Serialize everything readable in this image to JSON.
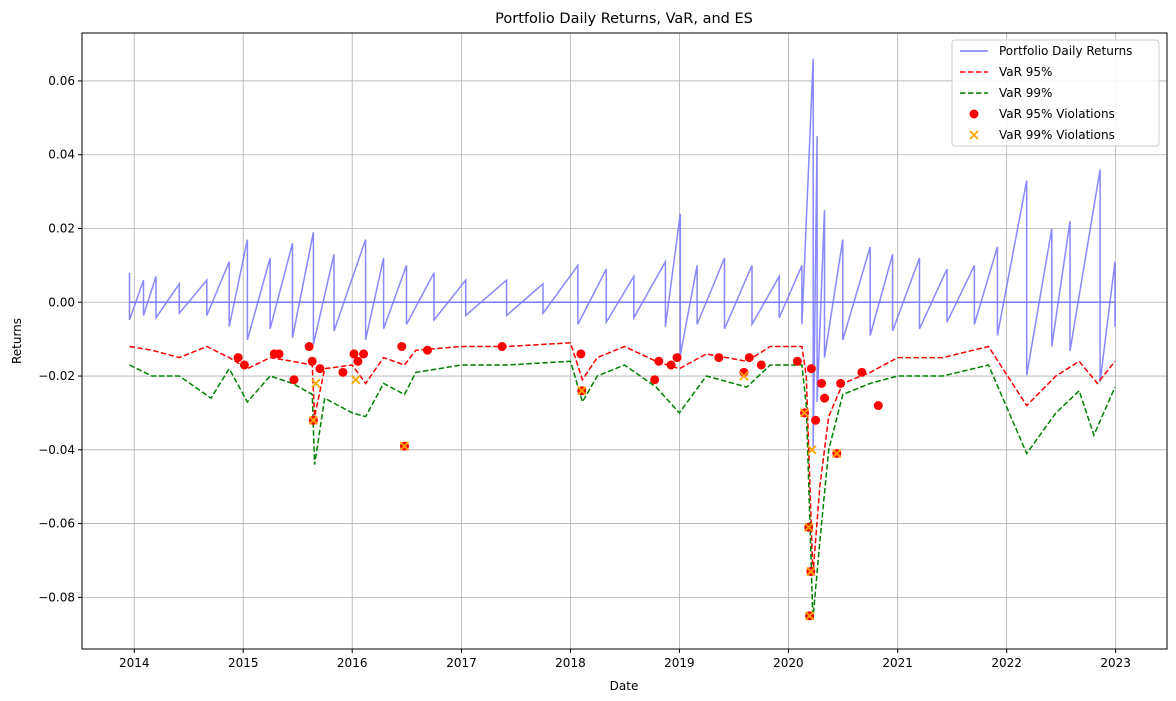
{
  "chart_data": {
    "type": "line",
    "title": "Portfolio Daily Returns, VaR, and ES",
    "xlabel": "Date",
    "ylabel": "Returns",
    "xlim": [
      "2013-07-10",
      "2023-06-22"
    ],
    "ylim": [
      -0.094,
      0.073
    ],
    "x_ticks": [
      "2014",
      "2015",
      "2016",
      "2017",
      "2018",
      "2019",
      "2020",
      "2021",
      "2022",
      "2023"
    ],
    "y_ticks": [
      -0.08,
      -0.06,
      -0.04,
      -0.02,
      0.0,
      0.02,
      0.04,
      0.06
    ],
    "y_tick_labels": [
      "−0.08",
      "−0.06",
      "−0.04",
      "−0.02",
      "0.00",
      "0.02",
      "0.04",
      "0.06"
    ],
    "grid": true,
    "legend_position": "top-right",
    "colors": {
      "returns": "#7b7bff",
      "var95": "#ff0000",
      "var99": "#008000",
      "viol95": "#ff0000",
      "viol99": "#ffa500"
    },
    "series": [
      {
        "name": "Portfolio Daily Returns",
        "style": "solid",
        "points": [
          [
            "2013-12-16",
            0.008
          ],
          [
            "2014-02-01",
            0.006
          ],
          [
            "2014-03-15",
            0.007
          ],
          [
            "2014-06-01",
            0.005
          ],
          [
            "2014-09-01",
            0.006
          ],
          [
            "2014-11-15",
            0.011
          ],
          [
            "2015-01-15",
            0.017
          ],
          [
            "2015-04-01",
            0.012
          ],
          [
            "2015-06-15",
            0.016
          ],
          [
            "2015-08-24",
            0.019
          ],
          [
            "2015-11-01",
            0.013
          ],
          [
            "2016-02-15",
            0.017
          ],
          [
            "2016-04-15",
            0.012
          ],
          [
            "2016-07-01",
            0.01
          ],
          [
            "2016-10-01",
            0.008
          ],
          [
            "2017-01-15",
            0.006
          ],
          [
            "2017-06-01",
            0.006
          ],
          [
            "2017-10-01",
            0.005
          ],
          [
            "2018-01-26",
            0.01
          ],
          [
            "2018-05-01",
            0.009
          ],
          [
            "2018-08-01",
            0.007
          ],
          [
            "2018-11-15",
            0.011
          ],
          [
            "2019-01-04",
            0.024
          ],
          [
            "2019-03-01",
            0.01
          ],
          [
            "2019-06-01",
            0.012
          ],
          [
            "2019-09-01",
            0.01
          ],
          [
            "2019-12-01",
            0.007
          ],
          [
            "2020-02-15",
            0.01
          ],
          [
            "2020-03-24",
            0.066
          ],
          [
            "2020-04-06",
            0.045
          ],
          [
            "2020-05-01",
            0.025
          ],
          [
            "2020-07-01",
            0.017
          ],
          [
            "2020-10-01",
            0.015
          ],
          [
            "2020-12-15",
            0.013
          ],
          [
            "2021-03-15",
            0.012
          ],
          [
            "2021-06-15",
            0.009
          ],
          [
            "2021-09-15",
            0.01
          ],
          [
            "2021-12-01",
            0.015
          ],
          [
            "2022-03-09",
            0.033
          ],
          [
            "2022-06-01",
            0.02
          ],
          [
            "2022-08-01",
            0.022
          ],
          [
            "2022-11-10",
            0.036
          ],
          [
            "2022-12-30",
            0.011
          ]
        ]
      },
      {
        "name": "VaR 95%",
        "style": "dashed",
        "points": [
          [
            "2013-12-16",
            -0.012
          ],
          [
            "2014-03-01",
            -0.013
          ],
          [
            "2014-06-01",
            -0.015
          ],
          [
            "2014-09-01",
            -0.012
          ],
          [
            "2014-11-15",
            -0.015
          ],
          [
            "2015-01-15",
            -0.018
          ],
          [
            "2015-04-01",
            -0.015
          ],
          [
            "2015-06-15",
            -0.016
          ],
          [
            "2015-08-20",
            -0.017
          ],
          [
            "2015-08-28",
            -0.031
          ],
          [
            "2015-10-01",
            -0.018
          ],
          [
            "2016-01-01",
            -0.017
          ],
          [
            "2016-02-15",
            -0.022
          ],
          [
            "2016-04-15",
            -0.015
          ],
          [
            "2016-06-24",
            -0.017
          ],
          [
            "2016-08-01",
            -0.013
          ],
          [
            "2017-01-01",
            -0.012
          ],
          [
            "2017-06-01",
            -0.012
          ],
          [
            "2018-01-01",
            -0.011
          ],
          [
            "2018-02-10",
            -0.021
          ],
          [
            "2018-04-01",
            -0.015
          ],
          [
            "2018-07-01",
            -0.012
          ],
          [
            "2018-10-15",
            -0.016
          ],
          [
            "2019-01-01",
            -0.018
          ],
          [
            "2019-04-01",
            -0.014
          ],
          [
            "2019-08-15",
            -0.016
          ],
          [
            "2019-11-01",
            -0.012
          ],
          [
            "2020-02-15",
            -0.012
          ],
          [
            "2020-03-01",
            -0.02
          ],
          [
            "2020-03-23",
            -0.074
          ],
          [
            "2020-04-15",
            -0.05
          ],
          [
            "2020-05-15",
            -0.031
          ],
          [
            "2020-07-01",
            -0.022
          ],
          [
            "2020-10-01",
            -0.019
          ],
          [
            "2021-01-01",
            -0.015
          ],
          [
            "2021-06-01",
            -0.015
          ],
          [
            "2021-11-01",
            -0.012
          ],
          [
            "2022-03-09",
            -0.028
          ],
          [
            "2022-06-15",
            -0.02
          ],
          [
            "2022-09-01",
            -0.016
          ],
          [
            "2022-11-01",
            -0.022
          ],
          [
            "2022-12-30",
            -0.016
          ]
        ]
      },
      {
        "name": "VaR 99%",
        "style": "dashed",
        "points": [
          [
            "2013-12-16",
            -0.017
          ],
          [
            "2014-03-01",
            -0.02
          ],
          [
            "2014-06-01",
            -0.02
          ],
          [
            "2014-09-15",
            -0.026
          ],
          [
            "2014-11-15",
            -0.018
          ],
          [
            "2015-01-15",
            -0.027
          ],
          [
            "2015-04-01",
            -0.02
          ],
          [
            "2015-06-15",
            -0.022
          ],
          [
            "2015-08-20",
            -0.025
          ],
          [
            "2015-08-28",
            -0.044
          ],
          [
            "2015-10-01",
            -0.026
          ],
          [
            "2016-01-01",
            -0.03
          ],
          [
            "2016-02-15",
            -0.031
          ],
          [
            "2016-04-15",
            -0.022
          ],
          [
            "2016-06-24",
            -0.025
          ],
          [
            "2016-08-01",
            -0.019
          ],
          [
            "2017-01-01",
            -0.017
          ],
          [
            "2017-06-01",
            -0.017
          ],
          [
            "2018-01-01",
            -0.016
          ],
          [
            "2018-02-10",
            -0.027
          ],
          [
            "2018-04-01",
            -0.02
          ],
          [
            "2018-07-01",
            -0.017
          ],
          [
            "2018-10-15",
            -0.023
          ],
          [
            "2019-01-01",
            -0.03
          ],
          [
            "2019-04-01",
            -0.02
          ],
          [
            "2019-08-15",
            -0.023
          ],
          [
            "2019-11-01",
            -0.017
          ],
          [
            "2020-02-15",
            -0.017
          ],
          [
            "2020-03-01",
            -0.028
          ],
          [
            "2020-03-23",
            -0.086
          ],
          [
            "2020-04-15",
            -0.065
          ],
          [
            "2020-05-15",
            -0.04
          ],
          [
            "2020-07-01",
            -0.025
          ],
          [
            "2020-10-01",
            -0.022
          ],
          [
            "2021-01-01",
            -0.02
          ],
          [
            "2021-06-01",
            -0.02
          ],
          [
            "2021-11-01",
            -0.017
          ],
          [
            "2022-03-09",
            -0.041
          ],
          [
            "2022-06-15",
            -0.03
          ],
          [
            "2022-09-01",
            -0.024
          ],
          [
            "2022-10-20",
            -0.036
          ],
          [
            "2022-12-30",
            -0.023
          ]
        ]
      },
      {
        "name": "VaR 95% Violations",
        "style": "marker-circle",
        "points": [
          [
            "2014-12-15",
            -0.015
          ],
          [
            "2015-01-05",
            -0.017
          ],
          [
            "2015-04-15",
            -0.014
          ],
          [
            "2015-05-01",
            -0.014
          ],
          [
            "2015-06-20",
            -0.021
          ],
          [
            "2015-08-10",
            -0.012
          ],
          [
            "2015-08-20",
            -0.016
          ],
          [
            "2015-08-24",
            -0.032
          ],
          [
            "2015-09-15",
            -0.018
          ],
          [
            "2015-12-01",
            -0.019
          ],
          [
            "2016-01-07",
            -0.014
          ],
          [
            "2016-01-20",
            -0.016
          ],
          [
            "2016-02-08",
            -0.014
          ],
          [
            "2016-06-15",
            -0.012
          ],
          [
            "2016-06-24",
            -0.039
          ],
          [
            "2016-09-09",
            -0.013
          ],
          [
            "2017-05-17",
            -0.012
          ],
          [
            "2018-02-05",
            -0.014
          ],
          [
            "2018-02-08",
            -0.024
          ],
          [
            "2018-10-10",
            -0.021
          ],
          [
            "2018-10-24",
            -0.016
          ],
          [
            "2018-12-04",
            -0.017
          ],
          [
            "2018-12-24",
            -0.015
          ],
          [
            "2019-05-13",
            -0.015
          ],
          [
            "2019-08-05",
            -0.019
          ],
          [
            "2019-08-23",
            -0.015
          ],
          [
            "2019-10-02",
            -0.017
          ],
          [
            "2020-01-31",
            -0.016
          ],
          [
            "2020-02-24",
            -0.03
          ],
          [
            "2020-03-09",
            -0.061
          ],
          [
            "2020-03-12",
            -0.085
          ],
          [
            "2020-03-16",
            -0.073
          ],
          [
            "2020-03-18",
            -0.018
          ],
          [
            "2020-04-01",
            -0.032
          ],
          [
            "2020-04-21",
            -0.022
          ],
          [
            "2020-05-01",
            -0.026
          ],
          [
            "2020-06-11",
            -0.041
          ],
          [
            "2020-06-24",
            -0.022
          ],
          [
            "2020-09-03",
            -0.019
          ],
          [
            "2020-10-28",
            -0.028
          ]
        ]
      },
      {
        "name": "VaR 99% Violations",
        "style": "marker-x",
        "points": [
          [
            "2015-08-24",
            -0.032
          ],
          [
            "2015-09-01",
            -0.022
          ],
          [
            "2016-01-13",
            -0.021
          ],
          [
            "2016-06-24",
            -0.039
          ],
          [
            "2018-02-08",
            -0.024
          ],
          [
            "2019-08-05",
            -0.02
          ],
          [
            "2020-02-24",
            -0.03
          ],
          [
            "2020-03-09",
            -0.061
          ],
          [
            "2020-03-12",
            -0.085
          ],
          [
            "2020-03-16",
            -0.073
          ],
          [
            "2020-03-20",
            -0.04
          ],
          [
            "2020-06-11",
            -0.041
          ]
        ]
      }
    ]
  }
}
